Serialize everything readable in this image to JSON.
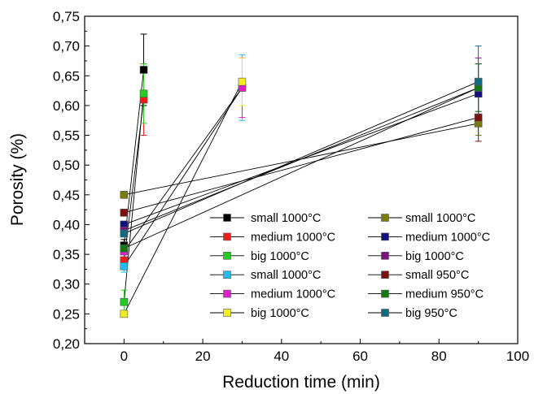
{
  "chart_data": {
    "type": "scatter",
    "title": "",
    "xlabel": "Reduction time (min)",
    "ylabel": "Porosity (%)",
    "xlim": [
      -10,
      100
    ],
    "ylim": [
      0.2,
      0.75
    ],
    "xticks": [
      "0",
      "20",
      "40",
      "60",
      "80",
      "100"
    ],
    "yticks": [
      "0,20",
      "0,25",
      "0,30",
      "0,35",
      "0,40",
      "0,45",
      "0,50",
      "0,55",
      "0,60",
      "0,65",
      "0,70",
      "0,75"
    ],
    "grid": false,
    "legend_position": "bottom-center",
    "series": [
      {
        "name": "small 1000°C",
        "color": "#000000",
        "points": [
          {
            "x": 0,
            "y": 0.365
          },
          {
            "x": 5,
            "y": 0.66
          }
        ],
        "errors": [
          0.01,
          0.06
        ]
      },
      {
        "name": "medium 1000°C",
        "color": "#ee1c1c",
        "points": [
          {
            "x": 0,
            "y": 0.34
          },
          {
            "x": 5,
            "y": 0.61
          }
        ],
        "errors": [
          0.01,
          0.06
        ]
      },
      {
        "name": "big 1000°C",
        "color": "#22cc22",
        "points": [
          {
            "x": 0,
            "y": 0.27
          },
          {
            "x": 5,
            "y": 0.62
          }
        ],
        "errors": [
          0.02,
          0.05
        ]
      },
      {
        "name": "small 1000°C",
        "color": "#22bbee",
        "points": [
          {
            "x": 0,
            "y": 0.33
          },
          {
            "x": 30,
            "y": 0.63
          }
        ],
        "errors": [
          0.01,
          0.055
        ]
      },
      {
        "name": "medium 1000°C",
        "color": "#dd22cc",
        "points": [
          {
            "x": 0,
            "y": 0.355
          },
          {
            "x": 30,
            "y": 0.63
          }
        ],
        "errors": [
          0.01,
          0.05
        ]
      },
      {
        "name": "big 1000°C",
        "color": "#f2ee22",
        "points": [
          {
            "x": 0,
            "y": 0.25
          },
          {
            "x": 30,
            "y": 0.64
          }
        ],
        "errors": [
          0.005,
          0.04
        ]
      },
      {
        "name": "small 1000°C",
        "color": "#7a7a10",
        "points": [
          {
            "x": 0,
            "y": 0.45
          },
          {
            "x": 90,
            "y": 0.57
          }
        ],
        "errors": [
          0.005,
          0.02
        ]
      },
      {
        "name": "medium 1000°C",
        "color": "#101080",
        "points": [
          {
            "x": 0,
            "y": 0.4
          },
          {
            "x": 90,
            "y": 0.62
          }
        ],
        "errors": [
          0.005,
          0.05
        ]
      },
      {
        "name": "big 1000°C",
        "color": "#7a1478",
        "points": [
          {
            "x": 0,
            "y": 0.39
          },
          {
            "x": 90,
            "y": 0.63
          }
        ],
        "errors": [
          0.005,
          0.05
        ]
      },
      {
        "name": "small 950°C",
        "color": "#7a1010",
        "points": [
          {
            "x": 0,
            "y": 0.42
          },
          {
            "x": 90,
            "y": 0.58
          }
        ],
        "errors": [
          0.005,
          0.04
        ]
      },
      {
        "name": "medium 950°C",
        "color": "#127a12",
        "points": [
          {
            "x": 0,
            "y": 0.36
          },
          {
            "x": 90,
            "y": 0.63
          }
        ],
        "errors": [
          0.005,
          0.04
        ]
      },
      {
        "name": "big 950°C",
        "color": "#126a80",
        "points": [
          {
            "x": 0,
            "y": 0.385
          },
          {
            "x": 90,
            "y": 0.64
          }
        ],
        "errors": [
          0.005,
          0.06
        ]
      }
    ]
  }
}
